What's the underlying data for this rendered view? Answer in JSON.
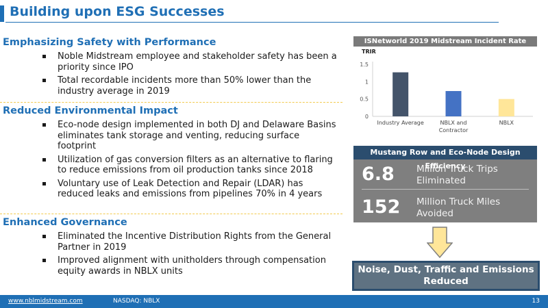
{
  "slide": {
    "title": "Building upon ESG Successes"
  },
  "sections": [
    {
      "heading": "Emphasizing Safety with Performance",
      "bullets": [
        "Noble Midstream employee and stakeholder safety has been a priority since IPO",
        "Total recordable incidents more than 50% lower than the industry average in 2019"
      ]
    },
    {
      "heading": "Reduced Environmental Impact",
      "bullets": [
        "Eco-node design implemented in both DJ and Delaware Basins eliminates tank storage and venting, reducing surface footprint",
        "Utilization of gas conversion filters as an alternative to flaring to reduce emissions from oil production tanks since 2018",
        "Voluntary use of Leak Detection and Repair (LDAR) has reduced leaks and emissions from pipelines 70% in 4 years"
      ]
    },
    {
      "heading": "Enhanced Governance",
      "bullets": [
        "Eliminated the Incentive Distribution Rights from the General Partner in 2019",
        "Improved alignment with unitholders through compensation equity awards in NBLX units"
      ]
    }
  ],
  "chart_data": {
    "type": "bar",
    "title": "ISNetworld 2019 Midstream Incident Rate",
    "ylabel": "TRIR",
    "categories": [
      "Industry Average",
      "NBLX and Contractor",
      "NBLX"
    ],
    "category_lines": [
      [
        "Industry Average"
      ],
      [
        "NBLX and",
        "Contractor"
      ],
      [
        "NBLX"
      ]
    ],
    "values": [
      1.27,
      0.73,
      0.5
    ],
    "ylim": [
      0,
      1.5
    ],
    "yticks": [
      "0",
      "0.5",
      "1",
      "1.5"
    ],
    "colors": [
      "#44546a",
      "#4472c4",
      "#ffe699"
    ],
    "grid": false
  },
  "efficiency": {
    "title": "Mustang Row and Eco-Node Design Efficiency",
    "rows": [
      {
        "value": "6.8",
        "label_line1": "Million Truck Trips",
        "label_line2": "Eliminated"
      },
      {
        "value": "152",
        "label_line1": "Million Truck Miles",
        "label_line2": "Avoided"
      }
    ]
  },
  "result": {
    "line1": "Noise, Dust, Traffic and Emissions",
    "line2": "Reduced"
  },
  "footer": {
    "website": "www.nblmidstream.com",
    "ticker": "NASDAQ: NBLX",
    "page": "13"
  },
  "colors": {
    "accent": "#1f6fb5",
    "dark_blue": "#2b4d6e",
    "gray_panel": "#7f7f7f",
    "arrow_fill": "#ffe699"
  }
}
